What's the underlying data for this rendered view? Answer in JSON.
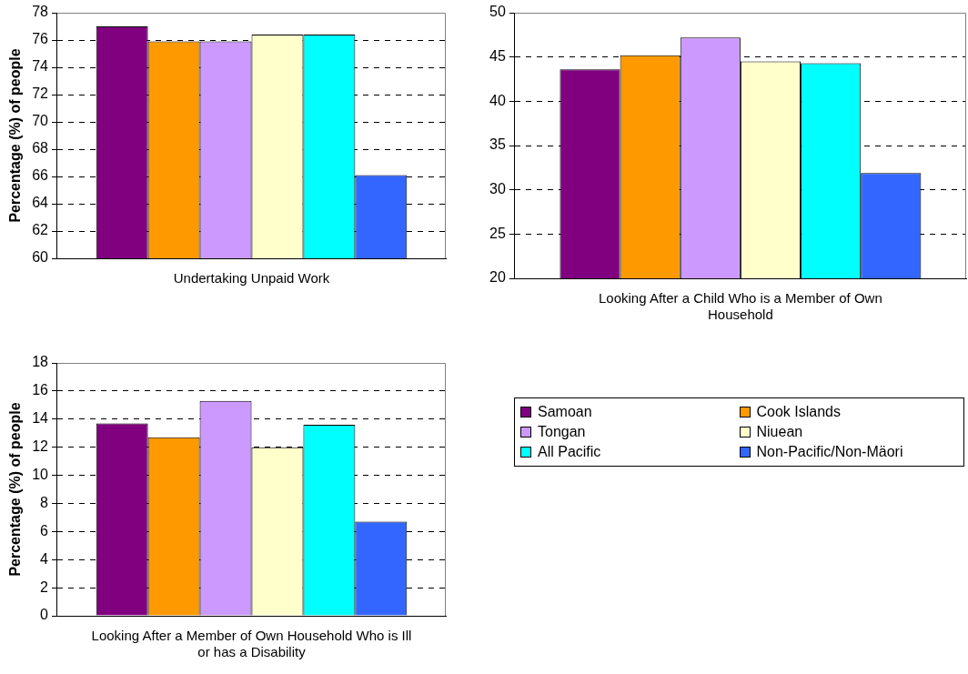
{
  "chart_data": [
    {
      "type": "bar",
      "ylabel": "Percentage (%) of people",
      "categories": [
        "Undertaking Unpaid Work"
      ],
      "ylim": [
        60,
        78
      ],
      "yticks": [
        60,
        62,
        64,
        66,
        68,
        70,
        72,
        74,
        76,
        78
      ],
      "grid": "y",
      "legend": "bottom right",
      "series": [
        {
          "name": "Samoan",
          "color": "#800080",
          "values": [
            77.0
          ]
        },
        {
          "name": "Cook Islands",
          "color": "#ff9900",
          "values": [
            75.9
          ]
        },
        {
          "name": "Tongan",
          "color": "#cc99ff",
          "values": [
            75.9
          ]
        },
        {
          "name": "Niuean",
          "color": "#ffffcc",
          "values": [
            76.4
          ]
        },
        {
          "name": "All Pacific",
          "color": "#00ffff",
          "values": [
            76.4
          ]
        },
        {
          "name": "Non-Pacific/Non-Mäori",
          "color": "#3366ff",
          "values": [
            66.1
          ]
        }
      ]
    },
    {
      "type": "bar",
      "categories": [
        "Looking After a Child Who is a Member of Own Household"
      ],
      "ylim": [
        20,
        50
      ],
      "yticks": [
        20,
        25,
        30,
        35,
        40,
        45,
        50
      ],
      "grid": "y",
      "series": [
        {
          "color": "#800080",
          "values": [
            43.6
          ]
        },
        {
          "color": "#ff9900",
          "values": [
            45.2
          ]
        },
        {
          "color": "#cc99ff",
          "values": [
            47.2
          ]
        },
        {
          "color": "#ffffcc",
          "values": [
            44.5
          ]
        },
        {
          "color": "#00ffff",
          "values": [
            44.3
          ]
        },
        {
          "color": "#3366ff",
          "values": [
            31.9
          ]
        }
      ]
    },
    {
      "type": "bar",
      "ylabel": "Percentage (%) of people",
      "categories": [
        "Looking After a Member of Own Household Who is Ill or has a Disability"
      ],
      "ylim": [
        0,
        18
      ],
      "yticks": [
        0,
        2,
        4,
        6,
        8,
        10,
        12,
        14,
        16,
        18
      ],
      "grid": "y",
      "series": [
        {
          "color": "#800080",
          "values": [
            13.7
          ]
        },
        {
          "color": "#ff9900",
          "values": [
            12.7
          ]
        },
        {
          "color": "#cc99ff",
          "values": [
            15.3
          ]
        },
        {
          "color": "#ffffcc",
          "values": [
            12.0
          ]
        },
        {
          "color": "#00ffff",
          "values": [
            13.6
          ]
        },
        {
          "color": "#3366ff",
          "values": [
            6.7
          ]
        }
      ]
    }
  ]
}
